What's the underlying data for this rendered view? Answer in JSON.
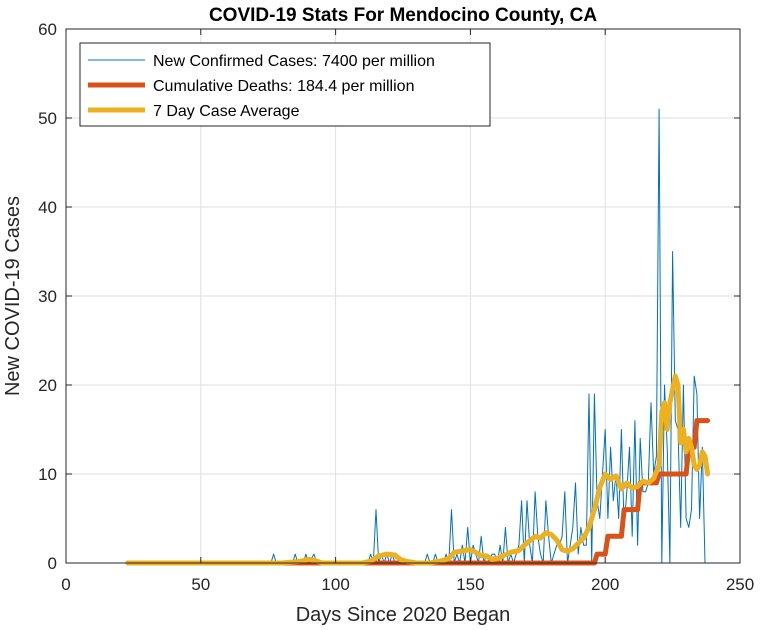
{
  "chart_data": {
    "type": "line",
    "title": "COVID-19 Stats For Mendocino County, CA",
    "xlabel": "Days Since 2020 Began",
    "ylabel": "New COVID-19 Cases",
    "xlim": [
      0,
      250
    ],
    "ylim": [
      0,
      60
    ],
    "xticks": [
      0,
      50,
      100,
      150,
      200,
      250
    ],
    "yticks": [
      0,
      10,
      20,
      30,
      40,
      50,
      60
    ],
    "grid": true,
    "legend_position": "top-left",
    "series": [
      {
        "name": "New Confirmed Cases: 7400 per million",
        "color": "#0072BD",
        "linewidth": "thin",
        "x": [
          23,
          76,
          77,
          78,
          84,
          85,
          86,
          88,
          89,
          90,
          92,
          93,
          112,
          113,
          114,
          115,
          116,
          117,
          118,
          119,
          120,
          121,
          122,
          130,
          133,
          134,
          135,
          136,
          137,
          138,
          139,
          140,
          141,
          142,
          143,
          144,
          145,
          146,
          147,
          148,
          149,
          150,
          151,
          152,
          153,
          154,
          155,
          156,
          157,
          158,
          159,
          160,
          161,
          162,
          163,
          164,
          165,
          166,
          167,
          168,
          169,
          170,
          171,
          172,
          173,
          174,
          175,
          176,
          177,
          178,
          179,
          180,
          181,
          182,
          183,
          184,
          185,
          186,
          187,
          188,
          189,
          190,
          191,
          192,
          193,
          194,
          195,
          196,
          197,
          198,
          199,
          200,
          201,
          202,
          203,
          204,
          205,
          206,
          207,
          208,
          209,
          210,
          211,
          212,
          213,
          214,
          215,
          216,
          217,
          218,
          219,
          220,
          221,
          222,
          223,
          224,
          225,
          226,
          227,
          228,
          229,
          230,
          231,
          232,
          233,
          234,
          235,
          236,
          237
        ],
        "y": [
          0,
          0,
          1,
          0,
          0,
          1,
          0,
          0,
          1,
          0,
          1,
          0,
          0,
          1,
          0,
          6,
          0,
          1,
          0,
          1,
          0,
          1,
          0,
          0,
          0,
          1,
          0,
          0,
          1,
          0,
          0,
          0,
          1,
          0,
          6,
          0,
          1,
          0,
          2,
          0,
          4,
          0,
          2,
          1,
          0,
          3,
          0,
          1,
          0,
          1,
          1,
          0,
          2,
          0,
          4,
          0,
          1,
          0,
          1,
          2,
          7,
          0,
          7,
          2,
          0,
          8,
          3,
          1,
          0,
          7,
          3,
          0,
          1,
          2,
          2,
          3,
          8,
          0,
          2,
          4,
          9,
          1,
          4,
          2,
          2,
          19,
          0,
          19,
          7,
          5,
          10,
          15,
          5,
          13,
          7,
          10,
          5,
          15,
          4,
          8,
          13,
          3,
          16,
          2,
          14,
          8,
          8,
          9,
          18,
          10,
          12,
          51,
          0,
          20,
          13,
          0,
          35,
          16,
          15,
          4,
          20,
          5,
          4,
          6,
          21,
          19,
          5,
          13,
          0
        ]
      },
      {
        "name": "Cumulative Deaths: 184.4 per million",
        "color": "#D95319",
        "linewidth": "thick",
        "x": [
          23,
          196,
          197,
          200,
          201,
          206,
          207,
          212,
          213,
          219,
          220,
          230,
          231,
          233,
          234,
          238
        ],
        "y": [
          0,
          0,
          1,
          1,
          3,
          3,
          6,
          6,
          9,
          9,
          10,
          10,
          13,
          13,
          16,
          16
        ]
      },
      {
        "name": "7 Day Case Average",
        "color": "#EDB120",
        "linewidth": "thick",
        "x": [
          23,
          80,
          84,
          87,
          90,
          92,
          95,
          110,
          113,
          116,
          119,
          122,
          124,
          126,
          130,
          135,
          140,
          142,
          144,
          146,
          148,
          150,
          152,
          154,
          156,
          158,
          160,
          162,
          165,
          168,
          170,
          172,
          174,
          176,
          178,
          180,
          182,
          184,
          186,
          188,
          190,
          192,
          194,
          196,
          198,
          200,
          202,
          204,
          206,
          208,
          210,
          212,
          214,
          216,
          218,
          220,
          221,
          222,
          223,
          224,
          225,
          226,
          227,
          228,
          229,
          230,
          231,
          232,
          233,
          234,
          235,
          236,
          237,
          238
        ],
        "y": [
          0,
          0,
          0.1,
          0.2,
          0.4,
          0.3,
          0,
          0,
          0.2,
          0.8,
          1,
          0.9,
          0.4,
          0.2,
          0,
          0,
          0.3,
          0.5,
          1.2,
          1.3,
          1.4,
          1.5,
          1.2,
          0.8,
          0.8,
          0.4,
          0.5,
          0.8,
          1.2,
          1.4,
          2,
          2.5,
          3,
          2.8,
          3.4,
          3.2,
          2.6,
          1.5,
          1.3,
          1.6,
          2.2,
          2.8,
          4,
          6,
          8.5,
          10,
          9.4,
          9.8,
          8.3,
          9,
          8.4,
          8.6,
          9.2,
          9,
          9.5,
          11,
          17,
          18,
          15,
          18,
          19.5,
          21,
          20,
          13.5,
          15,
          12.5,
          14,
          13,
          11,
          10.5,
          11,
          12.5,
          12,
          10
        ]
      }
    ]
  }
}
